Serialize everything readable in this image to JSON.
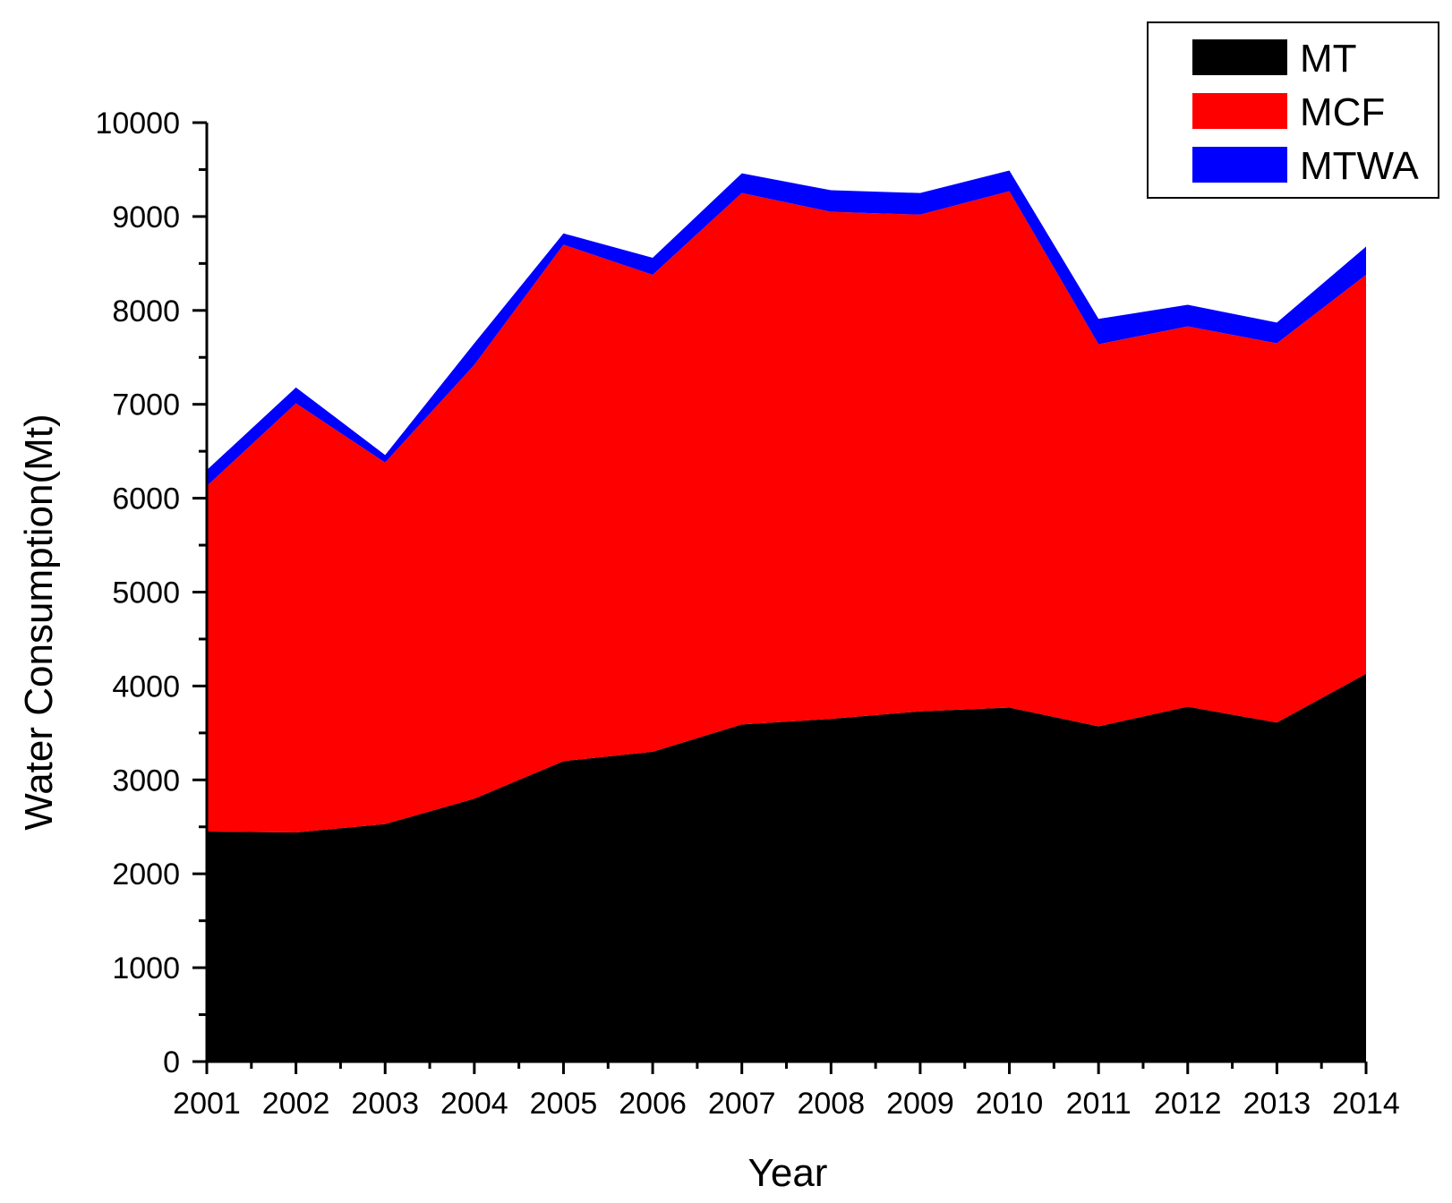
{
  "chart_data": {
    "type": "area",
    "stacked": true,
    "title": "",
    "xlabel": "Year",
    "ylabel": "Water Consumption(Mt)",
    "ylim": [
      0,
      10000
    ],
    "yticks": [
      "0",
      "1000",
      "2000",
      "3000",
      "4000",
      "5000",
      "6000",
      "7000",
      "8000",
      "9000",
      "10000"
    ],
    "categories": [
      "2001",
      "2002",
      "2003",
      "2004",
      "2005",
      "2006",
      "2007",
      "2008",
      "2009",
      "2010",
      "2011",
      "2012",
      "2013",
      "2014"
    ],
    "legend_position": "top-right",
    "series": [
      {
        "name": "MT",
        "color": "#000000",
        "values": [
          2450,
          2440,
          2530,
          2800,
          3200,
          3300,
          3590,
          3650,
          3730,
          3770,
          3570,
          3780,
          3610,
          4130
        ]
      },
      {
        "name": "MCF",
        "color": "#ff0000",
        "values": [
          3680,
          4570,
          3850,
          4620,
          5500,
          5080,
          5660,
          5400,
          5290,
          5500,
          4070,
          4050,
          4040,
          4250
        ]
      },
      {
        "name": "MTWA",
        "color": "#0000ff",
        "values": [
          170,
          170,
          80,
          230,
          120,
          180,
          210,
          230,
          230,
          220,
          270,
          230,
          220,
          300
        ]
      }
    ]
  }
}
